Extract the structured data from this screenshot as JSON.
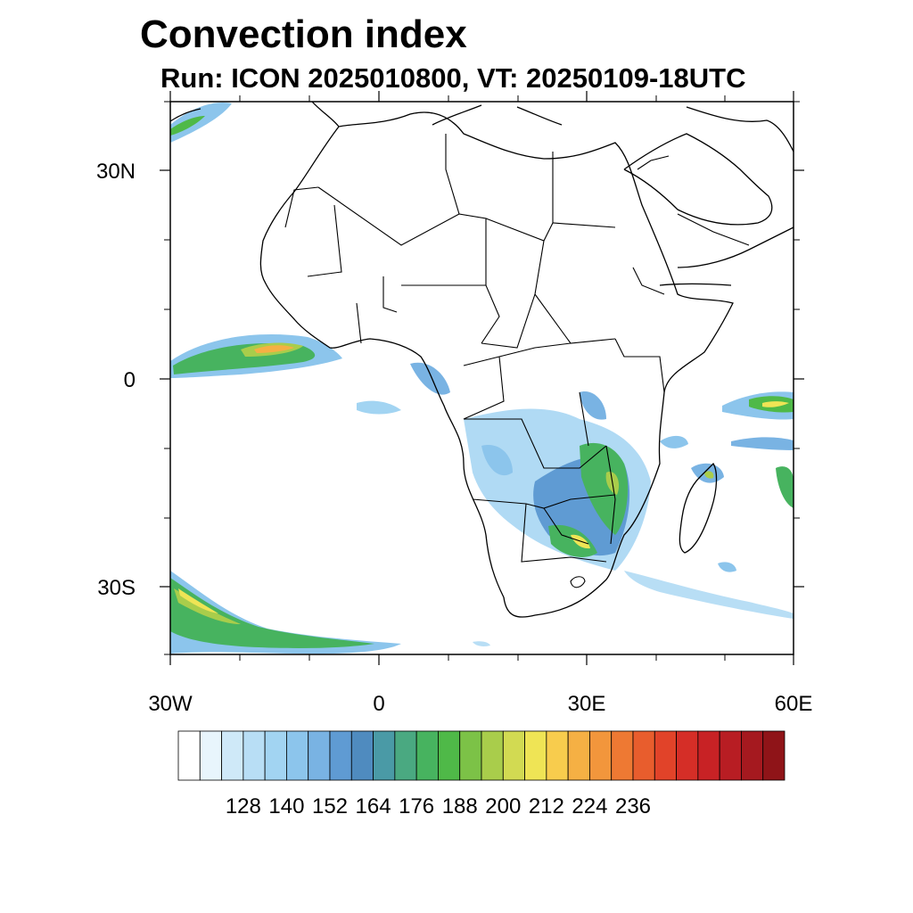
{
  "title": "Convection index",
  "subtitle": "Run: ICON 2025010800,  VT: 20250109-18UTC",
  "map": {
    "region": "Africa",
    "lat_labels": [
      "30N",
      "0",
      "30S"
    ],
    "lon_labels": [
      "30W",
      "0",
      "30E",
      "60E"
    ]
  },
  "colorbar": {
    "tick_labels": [
      "128",
      "140",
      "152",
      "164",
      "176",
      "188",
      "200",
      "212",
      "224",
      "236"
    ],
    "colors": [
      "#ffffff",
      "#e8f5fc",
      "#cfe9f8",
      "#b8def5",
      "#a2d4f2",
      "#8cc5ec",
      "#79b3e3",
      "#5f9bd3",
      "#4f8bbf",
      "#4a9aa6",
      "#4aa981",
      "#47b35f",
      "#4fb948",
      "#7cc247",
      "#a9cd4b",
      "#d2da52",
      "#efe455",
      "#f8cc4d",
      "#f5b044",
      "#f2963c",
      "#ee7933",
      "#e85d2d",
      "#e14329",
      "#d52e27",
      "#c82225",
      "#b81d23",
      "#a5191f",
      "#8f1418"
    ]
  }
}
